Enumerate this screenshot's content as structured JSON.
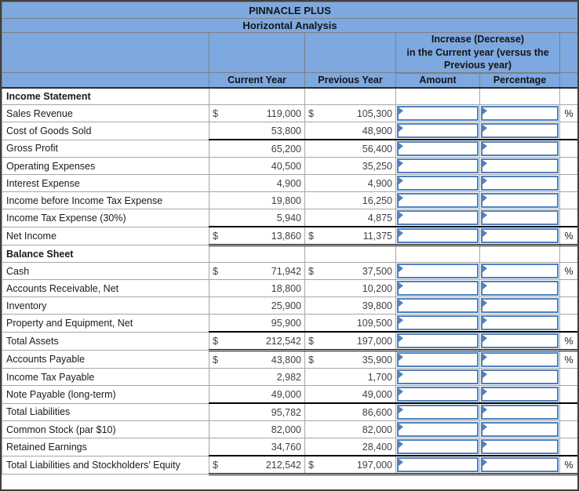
{
  "title": "PINNACLE PLUS",
  "subtitle": "Horizontal Analysis",
  "group_header": "Increase (Decrease)\nin the Current year (versus the\nPrevious year)",
  "column_headers": {
    "current_year": "Current Year",
    "previous_year": "Previous Year",
    "amount": "Amount",
    "percentage": "Percentage"
  },
  "symbols": {
    "dollar": "$",
    "percent": "%"
  },
  "colors": {
    "header_blue": "#7DA9E0",
    "input_border_blue": "#4F81BD",
    "grid_gray": "#A6A6A6",
    "outer_border": "#3F3F3F"
  },
  "table": {
    "rows": [
      {
        "label": "Income Statement",
        "type": "section"
      },
      {
        "label": "Sales Revenue",
        "current": "119,000",
        "previous": "105,300",
        "dollar": true,
        "percent": true
      },
      {
        "label": "Cost of Goods Sold",
        "current": "53,800",
        "previous": "48,900",
        "underline": "single"
      },
      {
        "label": "Gross Profit",
        "current": "65,200",
        "previous": "56,400"
      },
      {
        "label": "Operating Expenses",
        "current": "40,500",
        "previous": "35,250"
      },
      {
        "label": "Interest Expense",
        "current": "4,900",
        "previous": "4,900"
      },
      {
        "label": "Income before Income Tax Expense",
        "current": "19,800",
        "previous": "16,250"
      },
      {
        "label": "Income Tax Expense (30%)",
        "current": "5,940",
        "previous": "4,875",
        "underline": "single"
      },
      {
        "label": "Net Income",
        "current": "13,860",
        "previous": "11,375",
        "dollar": true,
        "percent": true,
        "underline": "double"
      },
      {
        "label": "Balance Sheet",
        "type": "section"
      },
      {
        "label": "Cash",
        "current": "71,942",
        "previous": "37,500",
        "dollar": true,
        "percent": true
      },
      {
        "label": "Accounts Receivable, Net",
        "current": "18,800",
        "previous": "10,200"
      },
      {
        "label": "Inventory",
        "current": "25,900",
        "previous": "39,800"
      },
      {
        "label": "Property and Equipment, Net",
        "current": "95,900",
        "previous": "109,500",
        "underline": "single"
      },
      {
        "label": "Total Assets",
        "current": "212,542",
        "previous": "197,000",
        "dollar": true,
        "percent": true,
        "underline": "double"
      },
      {
        "label": "Accounts Payable",
        "current": "43,800",
        "previous": "35,900",
        "dollar": true,
        "percent": true
      },
      {
        "label": "Income Tax Payable",
        "current": "2,982",
        "previous": "1,700"
      },
      {
        "label": "Note Payable (long-term)",
        "current": "49,000",
        "previous": "49,000",
        "underline": "single"
      },
      {
        "label": "Total Liabilities",
        "current": "95,782",
        "previous": "86,600"
      },
      {
        "label": "Common Stock (par $10)",
        "current": "82,000",
        "previous": "82,000"
      },
      {
        "label": "Retained Earnings",
        "current": "34,760",
        "previous": "28,400",
        "underline": "single"
      },
      {
        "label": "Total Liabilities and Stockholders’ Equity",
        "current": "212,542",
        "previous": "197,000",
        "dollar": true,
        "percent": true,
        "underline": "double"
      }
    ]
  }
}
